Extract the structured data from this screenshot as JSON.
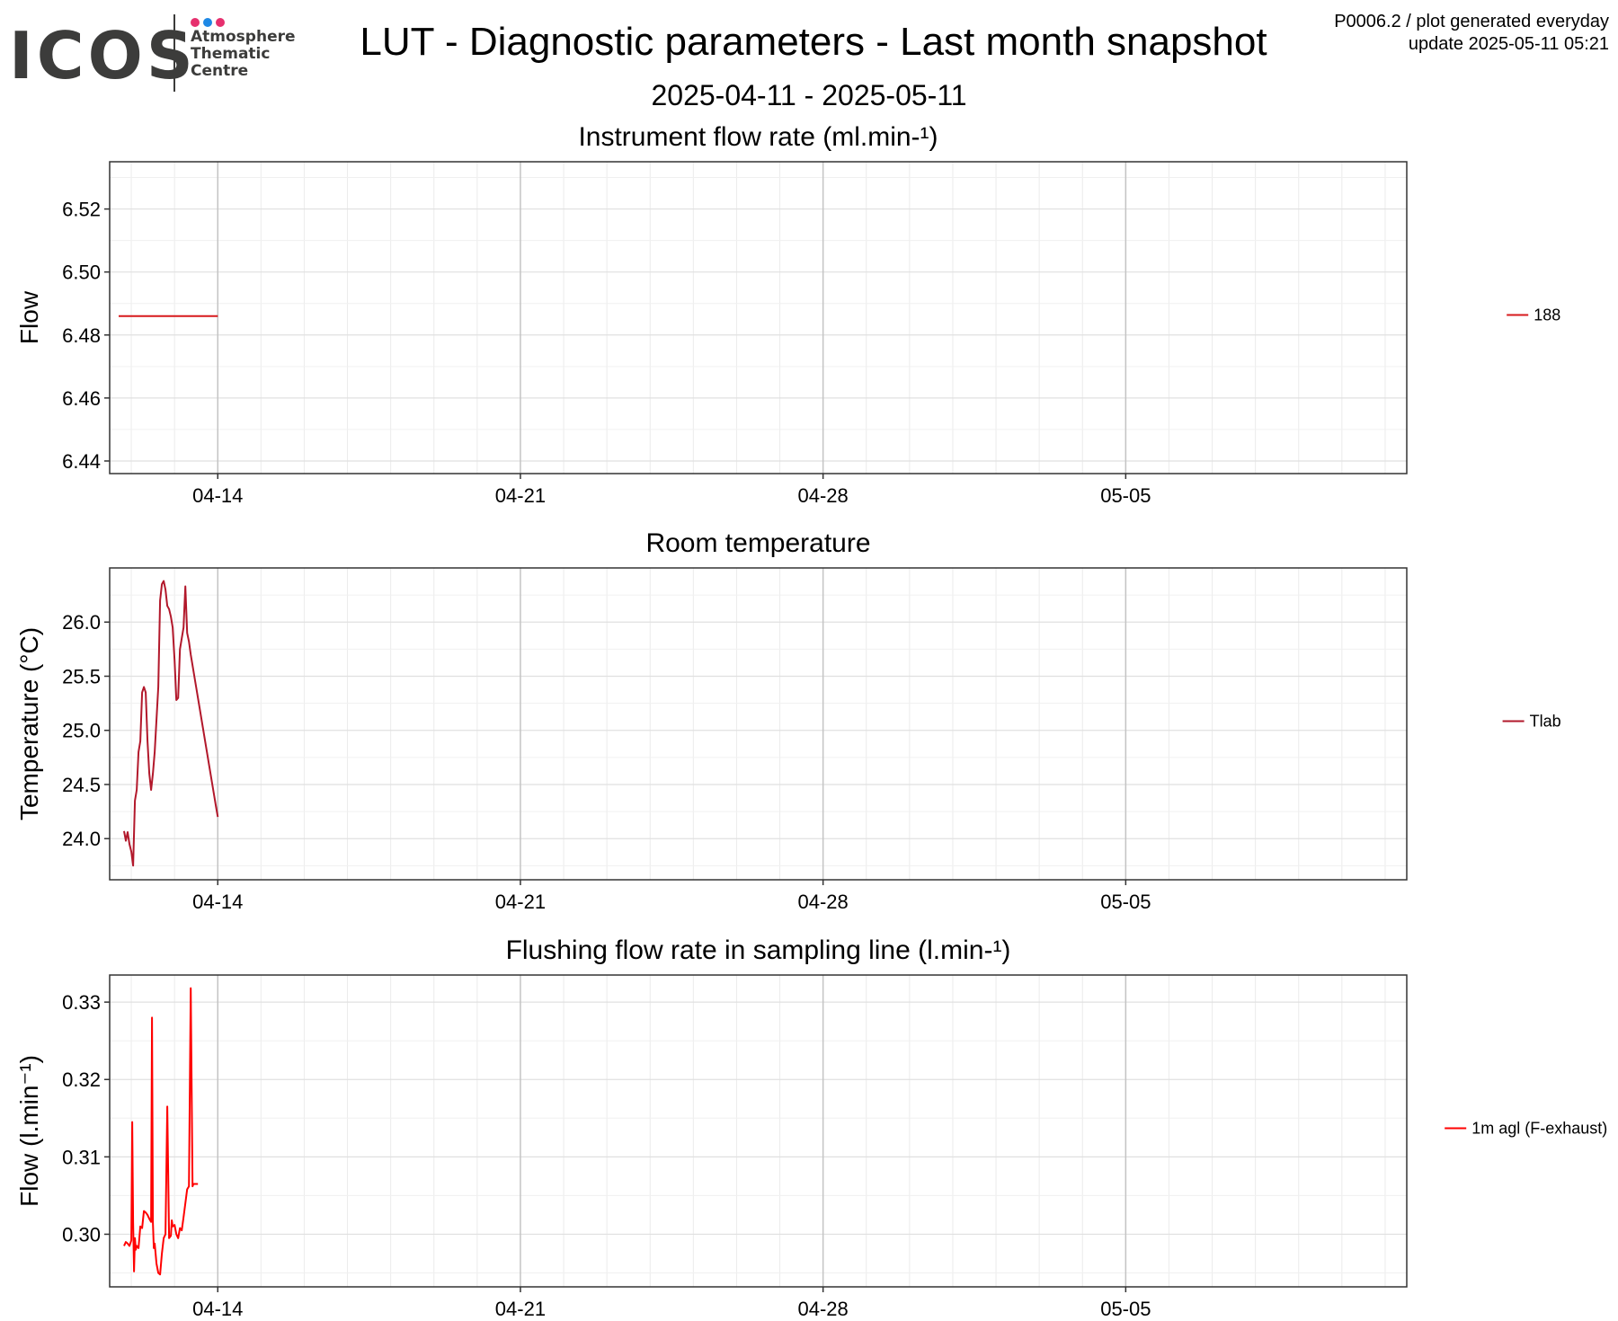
{
  "header": {
    "logo_text": "ICOS",
    "logo_sub": [
      "Atmosphere",
      "Thematic",
      "Centre"
    ],
    "logo_dot_colors": [
      "#e6306e",
      "#1e88e5",
      "#e6306e"
    ],
    "title": "LUT - Diagnostic parameters - Last month snapshot",
    "date_range": "2025-04-11 - 2025-05-11",
    "meta_line1": "P0006.2 / plot generated everyday",
    "meta_line2": "update  2025-05-11 05:21"
  },
  "chart_data": [
    {
      "type": "line",
      "title": "Instrument flow rate (ml.min-¹)",
      "ylabel": "Flow",
      "xlim": [
        "2025-04-11T12:00",
        "2025-05-11T12:00"
      ],
      "ylim": [
        6.436,
        6.535
      ],
      "yticks": [
        6.44,
        6.46,
        6.48,
        6.5,
        6.52
      ],
      "ytick_labels": [
        "6.44",
        "6.46",
        "6.48",
        "6.50",
        "6.52"
      ],
      "xticks": [
        "2025-04-14",
        "2025-04-21",
        "2025-04-28",
        "2025-05-05"
      ],
      "xtick_labels": [
        "04-14",
        "04-21",
        "04-28",
        "05-05"
      ],
      "legend_position": "right",
      "series": [
        {
          "name": "188",
          "color": "#d7191c",
          "x": [
            "2025-04-11T17:00",
            "2025-04-14T00:00"
          ],
          "y": [
            6.486,
            6.486
          ]
        }
      ]
    },
    {
      "type": "line",
      "title": "Room temperature",
      "ylabel": "Temperature (°C)",
      "xlim": [
        "2025-04-11T12:00",
        "2025-05-11T12:00"
      ],
      "ylim": [
        23.62,
        26.5
      ],
      "yticks": [
        24.0,
        24.5,
        25.0,
        25.5,
        26.0
      ],
      "ytick_labels": [
        "24.0",
        "24.5",
        "25.0",
        "25.5",
        "26.0"
      ],
      "xticks": [
        "2025-04-14",
        "2025-04-21",
        "2025-04-28",
        "2025-05-05"
      ],
      "xtick_labels": [
        "04-14",
        "04-21",
        "04-28",
        "05-05"
      ],
      "legend_position": "right",
      "series": [
        {
          "name": "Tlab",
          "color": "#b2182b",
          "x": [
            "2025-04-11T20:00",
            "2025-04-11T21:00",
            "2025-04-11T22:00",
            "2025-04-11T23:00",
            "2025-04-12T00:00",
            "2025-04-12T01:00",
            "2025-04-12T02:00",
            "2025-04-12T03:00",
            "2025-04-12T04:00",
            "2025-04-12T05:00",
            "2025-04-12T06:00",
            "2025-04-12T07:00",
            "2025-04-12T08:00",
            "2025-04-12T09:00",
            "2025-04-12T10:00",
            "2025-04-12T11:00",
            "2025-04-12T12:00",
            "2025-04-12T13:00",
            "2025-04-12T14:00",
            "2025-04-12T15:00",
            "2025-04-12T16:00",
            "2025-04-12T17:00",
            "2025-04-12T18:00",
            "2025-04-12T19:00",
            "2025-04-12T20:00",
            "2025-04-12T21:00",
            "2025-04-12T22:00",
            "2025-04-12T23:00",
            "2025-04-13T00:00",
            "2025-04-13T01:00",
            "2025-04-13T02:00",
            "2025-04-13T03:00",
            "2025-04-13T04:00",
            "2025-04-13T05:00",
            "2025-04-13T06:00",
            "2025-04-13T07:00",
            "2025-04-13T08:00",
            "2025-04-13T09:00",
            "2025-04-13T10:00",
            "2025-04-13T11:00",
            "2025-04-13T12:00",
            "2025-04-13T13:00",
            "2025-04-13T14:00",
            "2025-04-13T15:00",
            "2025-04-13T16:00",
            "2025-04-13T17:00",
            "2025-04-13T18:00",
            "2025-04-13T19:00",
            "2025-04-13T20:00",
            "2025-04-13T21:00",
            "2025-04-13T22:00",
            "2025-04-13T23:00",
            "2025-04-14T00:00"
          ],
          "y": [
            24.07,
            23.98,
            24.06,
            23.95,
            23.88,
            23.75,
            24.35,
            24.45,
            24.8,
            24.9,
            25.35,
            25.4,
            25.35,
            24.9,
            24.6,
            24.45,
            24.6,
            24.8,
            25.1,
            25.4,
            26.2,
            26.35,
            26.38,
            26.3,
            26.15,
            26.12,
            26.05,
            25.95,
            25.65,
            25.28,
            25.3,
            25.75,
            25.85,
            25.95,
            26.33,
            25.9,
            25.82,
            25.7,
            25.6,
            25.5,
            25.4,
            25.3,
            25.2,
            25.1,
            25.0,
            24.9,
            24.8,
            24.7,
            24.6,
            24.5,
            24.4,
            24.3,
            24.2
          ]
        }
      ]
    },
    {
      "type": "line",
      "title": "Flushing flow rate in sampling line (l.min-¹)",
      "ylabel": "Flow (l.min⁻¹)",
      "xlim": [
        "2025-04-11T12:00",
        "2025-05-11T12:00"
      ],
      "ylim": [
        0.2932,
        0.3335
      ],
      "yticks": [
        0.3,
        0.31,
        0.32,
        0.33
      ],
      "ytick_labels": [
        "0.30",
        "0.31",
        "0.32",
        "0.33"
      ],
      "xticks": [
        "2025-04-14",
        "2025-04-21",
        "2025-04-28",
        "2025-05-05"
      ],
      "xtick_labels": [
        "04-14",
        "04-21",
        "04-28",
        "05-05"
      ],
      "legend_position": "right",
      "series": [
        {
          "name": "1m agl (F-exhaust)",
          "color": "#ff0000",
          "x": [
            "2025-04-11T20:00",
            "2025-04-11T21:00",
            "2025-04-11T22:00",
            "2025-04-11T23:00",
            "2025-04-12T00:00",
            "2025-04-12T00:30",
            "2025-04-12T01:00",
            "2025-04-12T01:30",
            "2025-04-12T02:00",
            "2025-04-12T02:30",
            "2025-04-12T03:00",
            "2025-04-12T04:00",
            "2025-04-12T05:00",
            "2025-04-12T06:00",
            "2025-04-12T07:00",
            "2025-04-12T08:00",
            "2025-04-12T09:00",
            "2025-04-12T10:00",
            "2025-04-12T11:00",
            "2025-04-12T11:30",
            "2025-04-12T12:00",
            "2025-04-12T12:30",
            "2025-04-12T13:00",
            "2025-04-12T14:00",
            "2025-04-12T15:00",
            "2025-04-12T16:00",
            "2025-04-12T17:00",
            "2025-04-12T18:00",
            "2025-04-12T19:00",
            "2025-04-12T20:00",
            "2025-04-12T21:00",
            "2025-04-12T22:00",
            "2025-04-12T22:30",
            "2025-04-12T23:00",
            "2025-04-13T00:00",
            "2025-04-13T01:00",
            "2025-04-13T02:00",
            "2025-04-13T03:00",
            "2025-04-13T04:00",
            "2025-04-13T05:00",
            "2025-04-13T06:00",
            "2025-04-13T07:00",
            "2025-04-13T08:00",
            "2025-04-13T09:00",
            "2025-04-13T10:00",
            "2025-04-13T10:30",
            "2025-04-13T11:00",
            "2025-04-13T11:30",
            "2025-04-13T12:00",
            "2025-04-13T12:30",
            "2025-04-13T13:00"
          ],
          "y": [
            0.2985,
            0.299,
            0.2988,
            0.2985,
            0.2992,
            0.3145,
            0.3015,
            0.2952,
            0.2995,
            0.298,
            0.2985,
            0.2982,
            0.301,
            0.3008,
            0.303,
            0.3028,
            0.3025,
            0.302,
            0.3016,
            0.328,
            0.3015,
            0.2982,
            0.2988,
            0.2962,
            0.295,
            0.2948,
            0.2975,
            0.2995,
            0.3,
            0.3165,
            0.2995,
            0.2998,
            0.3018,
            0.301,
            0.3012,
            0.3,
            0.2995,
            0.3008,
            0.3005,
            0.3022,
            0.304,
            0.3058,
            0.3062,
            0.3318,
            0.3062,
            0.3065,
            0.3065,
            0.3065,
            0.3065,
            0.3065,
            0.3065
          ]
        }
      ]
    }
  ]
}
